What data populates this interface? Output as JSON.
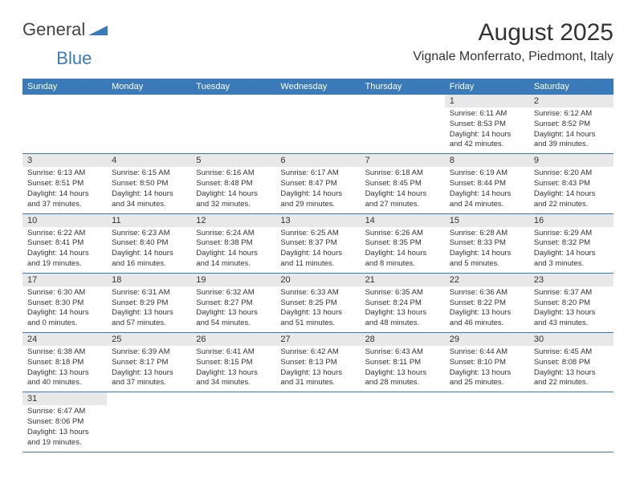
{
  "logo": {
    "text1": "General",
    "text2": "Blue"
  },
  "title": "August 2025",
  "location": "Vignale Monferrato, Piedmont, Italy",
  "colors": {
    "header_bg": "#3a7ab8",
    "header_fg": "#ffffff",
    "daynum_bg": "#e8e8e8",
    "border": "#3a7ab8",
    "text": "#333333",
    "page_bg": "#ffffff"
  },
  "weekdays": [
    "Sunday",
    "Monday",
    "Tuesday",
    "Wednesday",
    "Thursday",
    "Friday",
    "Saturday"
  ],
  "days": [
    {
      "n": 1,
      "sr": "6:11 AM",
      "ss": "8:53 PM",
      "dl": "14 hours and 42 minutes."
    },
    {
      "n": 2,
      "sr": "6:12 AM",
      "ss": "8:52 PM",
      "dl": "14 hours and 39 minutes."
    },
    {
      "n": 3,
      "sr": "6:13 AM",
      "ss": "8:51 PM",
      "dl": "14 hours and 37 minutes."
    },
    {
      "n": 4,
      "sr": "6:15 AM",
      "ss": "8:50 PM",
      "dl": "14 hours and 34 minutes."
    },
    {
      "n": 5,
      "sr": "6:16 AM",
      "ss": "8:48 PM",
      "dl": "14 hours and 32 minutes."
    },
    {
      "n": 6,
      "sr": "6:17 AM",
      "ss": "8:47 PM",
      "dl": "14 hours and 29 minutes."
    },
    {
      "n": 7,
      "sr": "6:18 AM",
      "ss": "8:45 PM",
      "dl": "14 hours and 27 minutes."
    },
    {
      "n": 8,
      "sr": "6:19 AM",
      "ss": "8:44 PM",
      "dl": "14 hours and 24 minutes."
    },
    {
      "n": 9,
      "sr": "6:20 AM",
      "ss": "8:43 PM",
      "dl": "14 hours and 22 minutes."
    },
    {
      "n": 10,
      "sr": "6:22 AM",
      "ss": "8:41 PM",
      "dl": "14 hours and 19 minutes."
    },
    {
      "n": 11,
      "sr": "6:23 AM",
      "ss": "8:40 PM",
      "dl": "14 hours and 16 minutes."
    },
    {
      "n": 12,
      "sr": "6:24 AM",
      "ss": "8:38 PM",
      "dl": "14 hours and 14 minutes."
    },
    {
      "n": 13,
      "sr": "6:25 AM",
      "ss": "8:37 PM",
      "dl": "14 hours and 11 minutes."
    },
    {
      "n": 14,
      "sr": "6:26 AM",
      "ss": "8:35 PM",
      "dl": "14 hours and 8 minutes."
    },
    {
      "n": 15,
      "sr": "6:28 AM",
      "ss": "8:33 PM",
      "dl": "14 hours and 5 minutes."
    },
    {
      "n": 16,
      "sr": "6:29 AM",
      "ss": "8:32 PM",
      "dl": "14 hours and 3 minutes."
    },
    {
      "n": 17,
      "sr": "6:30 AM",
      "ss": "8:30 PM",
      "dl": "14 hours and 0 minutes."
    },
    {
      "n": 18,
      "sr": "6:31 AM",
      "ss": "8:29 PM",
      "dl": "13 hours and 57 minutes."
    },
    {
      "n": 19,
      "sr": "6:32 AM",
      "ss": "8:27 PM",
      "dl": "13 hours and 54 minutes."
    },
    {
      "n": 20,
      "sr": "6:33 AM",
      "ss": "8:25 PM",
      "dl": "13 hours and 51 minutes."
    },
    {
      "n": 21,
      "sr": "6:35 AM",
      "ss": "8:24 PM",
      "dl": "13 hours and 48 minutes."
    },
    {
      "n": 22,
      "sr": "6:36 AM",
      "ss": "8:22 PM",
      "dl": "13 hours and 46 minutes."
    },
    {
      "n": 23,
      "sr": "6:37 AM",
      "ss": "8:20 PM",
      "dl": "13 hours and 43 minutes."
    },
    {
      "n": 24,
      "sr": "6:38 AM",
      "ss": "8:18 PM",
      "dl": "13 hours and 40 minutes."
    },
    {
      "n": 25,
      "sr": "6:39 AM",
      "ss": "8:17 PM",
      "dl": "13 hours and 37 minutes."
    },
    {
      "n": 26,
      "sr": "6:41 AM",
      "ss": "8:15 PM",
      "dl": "13 hours and 34 minutes."
    },
    {
      "n": 27,
      "sr": "6:42 AM",
      "ss": "8:13 PM",
      "dl": "13 hours and 31 minutes."
    },
    {
      "n": 28,
      "sr": "6:43 AM",
      "ss": "8:11 PM",
      "dl": "13 hours and 28 minutes."
    },
    {
      "n": 29,
      "sr": "6:44 AM",
      "ss": "8:10 PM",
      "dl": "13 hours and 25 minutes."
    },
    {
      "n": 30,
      "sr": "6:45 AM",
      "ss": "8:08 PM",
      "dl": "13 hours and 22 minutes."
    },
    {
      "n": 31,
      "sr": "6:47 AM",
      "ss": "8:06 PM",
      "dl": "13 hours and 19 minutes."
    }
  ],
  "labels": {
    "sunrise": "Sunrise:",
    "sunset": "Sunset:",
    "daylight": "Daylight:"
  },
  "first_weekday_index": 5
}
